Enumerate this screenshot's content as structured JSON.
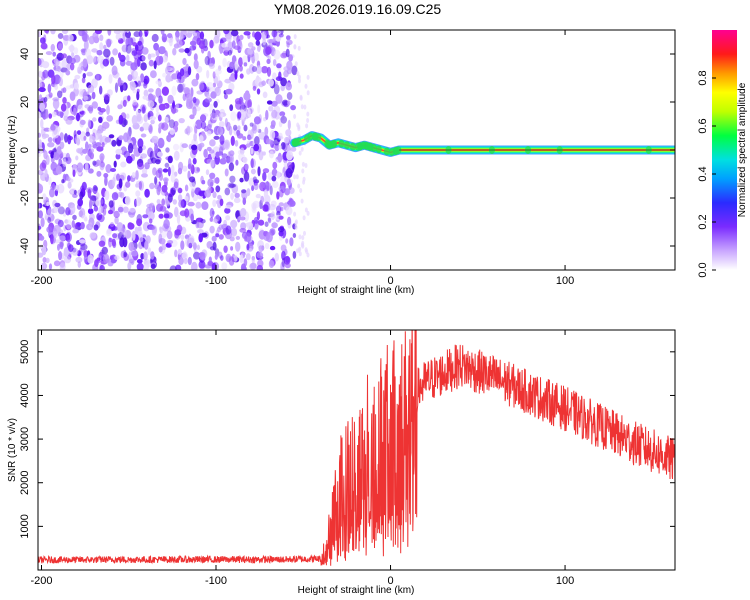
{
  "title": "YM08.2026.019.16.09.C25",
  "chart_data": [
    {
      "type": "heatmap",
      "name": "spectrogram",
      "xlabel": "Height of straight line (km)",
      "ylabel": "Frequency (Hz)",
      "xlim": [
        -202,
        163
      ],
      "ylim": [
        -50,
        50
      ],
      "xticks": [
        -200,
        -100,
        0,
        100
      ],
      "yticks": [
        -40,
        -20,
        0,
        20,
        40
      ],
      "noise_region_x": [
        -202,
        -55
      ],
      "carrier_track": [
        {
          "x": -55,
          "y": 3
        },
        {
          "x": -50,
          "y": 4
        },
        {
          "x": -45,
          "y": 6
        },
        {
          "x": -40,
          "y": 5
        },
        {
          "x": -35,
          "y": 2
        },
        {
          "x": -30,
          "y": 3
        },
        {
          "x": -25,
          "y": 2
        },
        {
          "x": -20,
          "y": 1
        },
        {
          "x": -15,
          "y": 2
        },
        {
          "x": -10,
          "y": 1
        },
        {
          "x": -5,
          "y": 0
        },
        {
          "x": 0,
          "y": -1
        },
        {
          "x": 5,
          "y": 0
        },
        {
          "x": 163,
          "y": 0
        }
      ],
      "colorbar": {
        "label": "Normalized spectral amplitude",
        "range": [
          0,
          1
        ],
        "ticks": [
          0.0,
          0.2,
          0.4,
          0.6,
          0.8
        ]
      }
    },
    {
      "type": "line",
      "name": "snr",
      "xlabel": "Height of straight line (km)",
      "ylabel": "SNR (10 * v/v)",
      "xlim": [
        -202,
        163
      ],
      "ylim": [
        0,
        5500
      ],
      "xticks": [
        -200,
        -100,
        0,
        100
      ],
      "yticks": [
        1000,
        2000,
        3000,
        4000,
        5000
      ],
      "color": "#ee3333",
      "series": [
        {
          "name": "SNR",
          "points": [
            {
              "x": -202,
              "y": 230
            },
            {
              "x": -150,
              "y": 240
            },
            {
              "x": -100,
              "y": 240
            },
            {
              "x": -60,
              "y": 240
            },
            {
              "x": -40,
              "y": 260
            },
            {
              "x": -35,
              "y": 800
            },
            {
              "x": -30,
              "y": 1800
            },
            {
              "x": -20,
              "y": 2200
            },
            {
              "x": -10,
              "y": 2800
            },
            {
              "x": 0,
              "y": 3000
            },
            {
              "x": 10,
              "y": 3300
            },
            {
              "x": 15,
              "y": 4100
            },
            {
              "x": 20,
              "y": 4300
            },
            {
              "x": 30,
              "y": 4500
            },
            {
              "x": 40,
              "y": 4700
            },
            {
              "x": 60,
              "y": 4400
            },
            {
              "x": 80,
              "y": 4050
            },
            {
              "x": 100,
              "y": 3700
            },
            {
              "x": 120,
              "y": 3300
            },
            {
              "x": 140,
              "y": 2900
            },
            {
              "x": 163,
              "y": 2500
            }
          ]
        }
      ]
    }
  ]
}
